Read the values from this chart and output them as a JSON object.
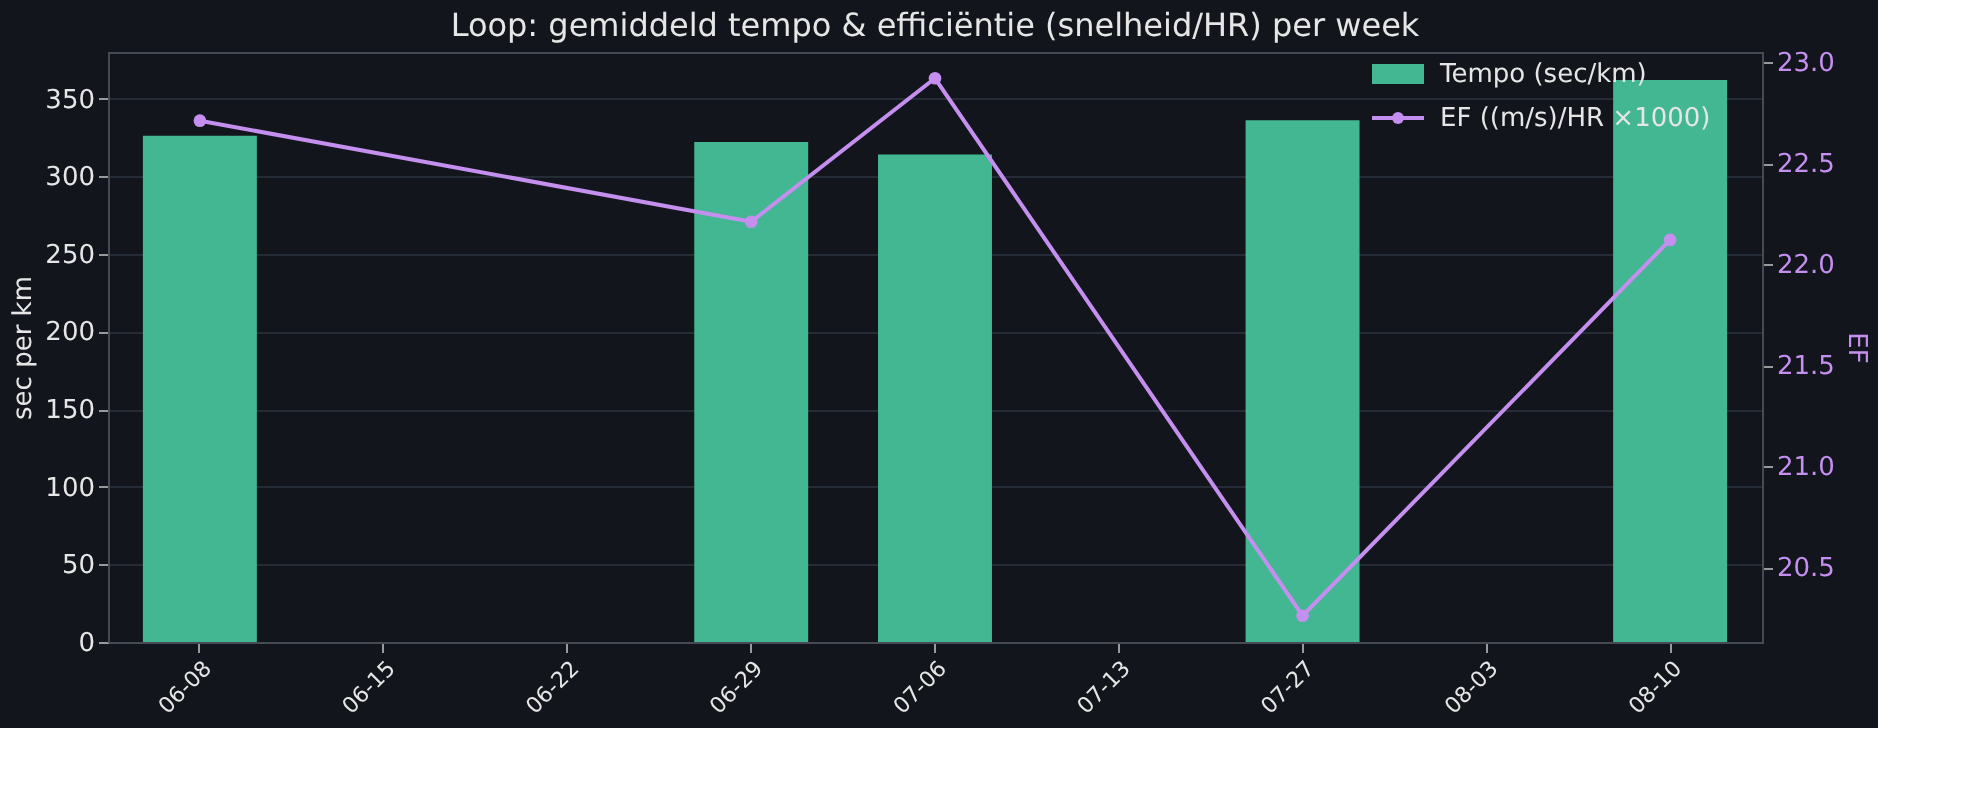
{
  "chart_data": {
    "type": "bar",
    "title": "Loop: gemiddeld tempo & efficiëntie (snelheid/HR) per week",
    "categories": [
      "06-08",
      "06-15",
      "06-22",
      "06-29",
      "07-06",
      "07-13",
      "07-27",
      "08-03",
      "08-10"
    ],
    "series": [
      {
        "name": "Tempo (sec/km)",
        "color": "#43b692",
        "values": [
          326,
          null,
          null,
          322,
          314,
          null,
          336,
          null,
          362
        ]
      },
      {
        "name": "EF ((m/s)/HR ×1000)",
        "type": "line",
        "axis": "y2",
        "color": "#c58ff0",
        "marker": "circle",
        "values": [
          22.71,
          null,
          null,
          22.21,
          22.92,
          null,
          20.26,
          null,
          22.12
        ]
      }
    ],
    "ylabel": "sec per km",
    "y2label": "EF",
    "ylim": [
      0,
      380
    ],
    "yticks": [
      0,
      50,
      100,
      150,
      200,
      250,
      300,
      350
    ],
    "y2lim": [
      20.13,
      23.05
    ],
    "y2ticks": [
      20.5,
      {
        "value": 21,
        "label": "21.0"
      },
      21.5,
      {
        "value": 22,
        "label": "22.0"
      },
      22.5,
      {
        "value": 23,
        "label": "23.0"
      }
    ],
    "grid": "y",
    "legend": "top right"
  }
}
